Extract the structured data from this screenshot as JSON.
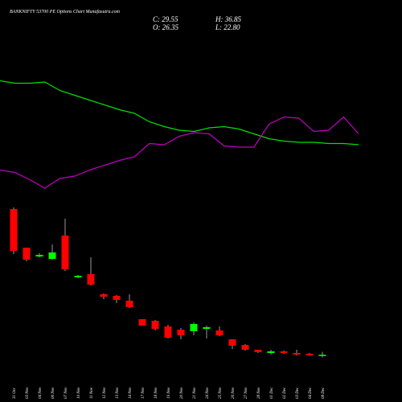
{
  "chart_data": {
    "type": "candlestick",
    "title": "BANKNIFTY 53700 PE Options Chart Munafasutra.com",
    "ohlc_labels": {
      "close": "C: 29.55",
      "high": "H: 36.85",
      "open": "O: 26.35",
      "low": "L: 22.80"
    },
    "categories": [
      "31 Oct",
      "03 Nov",
      "04 Nov",
      "06 Nov",
      "07 Nov",
      "10 Nov",
      "11 Nov",
      "12 Nov",
      "13 Nov",
      "14 Nov",
      "17 Nov",
      "18 Nov",
      "19 Nov",
      "20 Nov",
      "21 Nov",
      "24 Nov",
      "25 Nov",
      "26 Nov",
      "27 Nov",
      "28 Nov",
      "01 Dec",
      "02 Dec",
      "03 Dec",
      "04 Dec",
      "08 Dec"
    ],
    "open": [
      392,
      296,
      274,
      268,
      326,
      222,
      230,
      180,
      176,
      164,
      118,
      114,
      100,
      92,
      88,
      94,
      90,
      68,
      54,
      42,
      34,
      38,
      34,
      32,
      26.35
    ],
    "high": [
      396,
      296,
      282,
      304,
      368,
      228,
      272,
      182,
      178,
      180,
      118,
      116,
      104,
      96,
      110,
      102,
      100,
      68,
      56,
      42,
      42,
      40,
      42,
      34,
      36.85
    ],
    "low": [
      280,
      262,
      272,
      266,
      238,
      220,
      202,
      168,
      158,
      146,
      102,
      90,
      70,
      68,
      78,
      70,
      76,
      44,
      40,
      34,
      30,
      32,
      28,
      28,
      22.8
    ],
    "close": [
      288,
      266,
      278,
      284,
      242,
      226,
      204,
      174,
      166,
      148,
      102,
      94,
      72,
      78,
      106,
      98,
      78,
      52,
      42,
      36,
      38,
      34,
      30,
      28,
      29.55
    ],
    "up_color": "#00ff00",
    "down_color": "#ff0000",
    "ylim": [
      0,
      400
    ],
    "indicators": {
      "ylim": [
        0,
        100
      ],
      "series": [
        {
          "color": "#00e000",
          "values": [
            93,
            91,
            91,
            92,
            85,
            81,
            77,
            73,
            69,
            66,
            59,
            55,
            52,
            51,
            54,
            55,
            53,
            49,
            45,
            43,
            42,
            42,
            41,
            41,
            40
          ]
        },
        {
          "color": "#c000c0",
          "values": [
            19,
            17,
            11,
            4,
            12,
            14,
            19,
            23,
            27,
            30,
            41,
            40,
            47,
            50,
            49,
            39,
            38,
            38,
            57,
            63,
            62,
            51,
            52,
            63,
            49
          ]
        }
      ]
    }
  }
}
